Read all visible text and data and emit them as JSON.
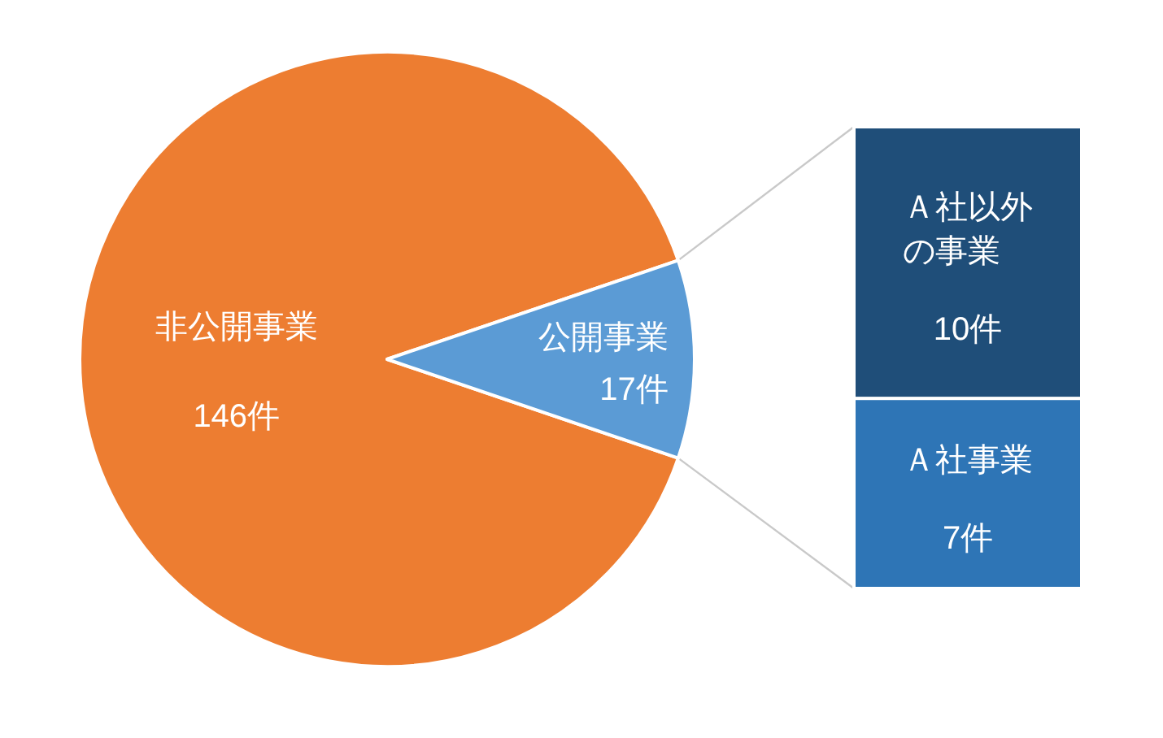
{
  "chart_data": [
    {
      "type": "pie",
      "categories": [
        "非公開事業",
        "公開事業"
      ],
      "values": [
        146,
        17
      ],
      "colors": [
        "#ed7d31",
        "#5b9bd5"
      ],
      "value_labels": [
        "146件",
        "17件"
      ]
    },
    {
      "type": "bar",
      "stacked": true,
      "categories": [
        null
      ],
      "series": [
        {
          "name": "Ａ社事業",
          "color": "#2e75b6",
          "values": [
            7
          ],
          "value_labels": [
            "7件"
          ]
        },
        {
          "name": "Ａ社以外の事業",
          "color": "#1f4e79",
          "values": [
            10
          ],
          "value_labels": [
            "10件"
          ]
        }
      ]
    }
  ]
}
